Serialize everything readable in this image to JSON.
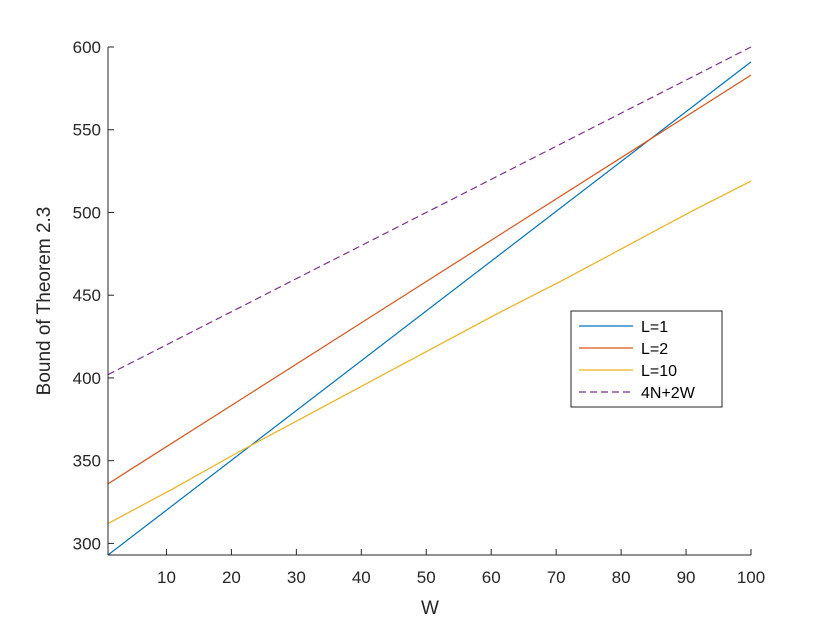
{
  "chart_data": {
    "type": "line",
    "title": "",
    "xlabel": "W",
    "ylabel": "Bound of Theorem 2.3",
    "xlim": [
      1,
      100
    ],
    "ylim": [
      293,
      600
    ],
    "xticks": [
      10,
      20,
      30,
      40,
      50,
      60,
      70,
      80,
      90,
      100
    ],
    "yticks": [
      300,
      350,
      400,
      450,
      500,
      550,
      600
    ],
    "grid": false,
    "legend_position": "right-center",
    "series": [
      {
        "name": "L=1",
        "color": "#0072BD",
        "style": "solid",
        "x": [
          1,
          100
        ],
        "y": [
          293,
          591
        ]
      },
      {
        "name": "L=2",
        "color": "#D95319",
        "style": "solid",
        "x": [
          1,
          100
        ],
        "y": [
          336,
          583
        ]
      },
      {
        "name": "L=10",
        "color": "#EDB120",
        "style": "solid",
        "x": [
          1,
          11,
          21,
          31,
          41,
          51,
          61,
          71,
          81,
          91,
          100
        ],
        "y": [
          312,
          333,
          355,
          376,
          397,
          418,
          439,
          459,
          480,
          501,
          519
        ]
      },
      {
        "name": "4N+2W",
        "color": "#7E2F8E",
        "style": "dashed",
        "x": [
          1,
          100
        ],
        "y": [
          402,
          600
        ]
      }
    ]
  }
}
